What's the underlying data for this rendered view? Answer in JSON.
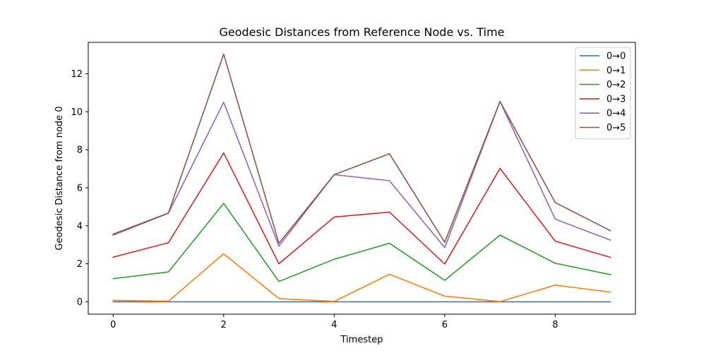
{
  "chart_data": {
    "type": "line",
    "title": "Geodesic Distances from Reference Node vs. Time",
    "xlabel": "Timestep",
    "ylabel": "Geodesic Distance from node 0",
    "x": [
      0,
      1,
      2,
      3,
      4,
      5,
      6,
      7,
      8,
      9
    ],
    "xlim": [
      -0.45,
      9.45
    ],
    "ylim": [
      -0.65,
      13.65
    ],
    "xticks": [
      0,
      2,
      4,
      6,
      8
    ],
    "yticks": [
      0,
      2,
      4,
      6,
      8,
      10,
      12
    ],
    "grid": false,
    "legend_position": "top-right",
    "series": [
      {
        "name": "0→0",
        "color": "#1f77b4",
        "values": [
          0,
          0,
          0,
          0,
          0,
          0,
          0,
          0,
          0,
          0
        ]
      },
      {
        "name": "0→1",
        "color": "#ff7f0e",
        "values": [
          0.08,
          0.03,
          2.53,
          0.17,
          0.02,
          1.45,
          0.3,
          0.01,
          0.88,
          0.51
        ]
      },
      {
        "name": "0→2",
        "color": "#2ca02c",
        "values": [
          1.22,
          1.57,
          5.18,
          1.07,
          2.24,
          3.08,
          1.13,
          3.51,
          2.03,
          1.43
        ]
      },
      {
        "name": "0→3",
        "color": "#d62728",
        "values": [
          2.35,
          3.11,
          7.83,
          2.0,
          4.46,
          4.72,
          1.99,
          7.02,
          3.19,
          2.34
        ]
      },
      {
        "name": "0→4",
        "color": "#9467bd",
        "values": [
          3.5,
          4.66,
          10.5,
          2.93,
          6.69,
          6.37,
          2.85,
          10.54,
          4.35,
          3.24
        ]
      },
      {
        "name": "0→5",
        "color": "#8c564b",
        "values": [
          3.56,
          4.67,
          13.03,
          3.08,
          6.69,
          7.79,
          3.13,
          10.54,
          5.22,
          3.74
        ]
      }
    ]
  }
}
